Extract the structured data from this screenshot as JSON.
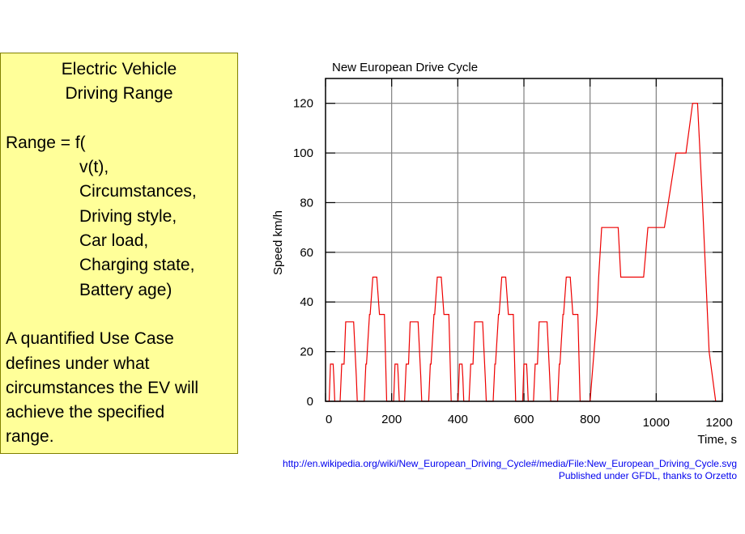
{
  "textbox": {
    "title_lines": [
      "Electric Vehicle",
      "Driving Range"
    ],
    "formula_head": "Range = f(",
    "formula_args": [
      "v(t),",
      "Circumstances,",
      "Driving style,",
      "Car load,",
      "Charging state,",
      "Battery age)"
    ],
    "paragraph_lines": [
      "A quantified Use Case",
      "defines under what",
      "circumstances the EV will",
      "achieve the specified",
      "range."
    ]
  },
  "credits": {
    "url": "http://en.wikipedia.org/wiki/New_European_Driving_Cycle#/media/File:New_European_Driving_Cycle.svg",
    "attribution": "Published under GFDL, thanks to Orzetto"
  },
  "colors": {
    "box_fill": "#ffff99",
    "box_border": "#808000",
    "line": "#ee0000",
    "grid": "#808080",
    "link": "#0000ee"
  },
  "chart_data": {
    "type": "line",
    "title": "New European Drive Cycle",
    "xlabel": "Time, s",
    "ylabel": "Speed km/h",
    "xlim": [
      0,
      1200
    ],
    "ylim": [
      0,
      130
    ],
    "xticks": [
      0,
      200,
      400,
      600,
      800,
      1000,
      1200
    ],
    "yticks": [
      0,
      20,
      40,
      60,
      80,
      100,
      120
    ],
    "grid": true,
    "legend": null,
    "series": [
      {
        "name": "Speed",
        "urban_cycle_template": {
          "period_s": 195,
          "repeats": 4,
          "t": [
            0,
            11,
            15,
            23,
            25,
            28,
            44,
            49,
            54,
            56,
            61,
            85,
            93,
            96,
            117,
            122,
            124,
            133,
            135,
            143,
            155,
            163,
            176,
            178,
            185,
            188,
            195
          ],
          "v": [
            0,
            0,
            15,
            15,
            10,
            0,
            0,
            15,
            15,
            15,
            32,
            32,
            10,
            0,
            0,
            15,
            15,
            35,
            35,
            50,
            50,
            35,
            35,
            35,
            0,
            0,
            0
          ]
        },
        "extra_urban": {
          "t": [
            780,
            800,
            821,
            826,
            835,
            885,
            893,
            962,
            975,
            1025,
            1060,
            1090,
            1110,
            1125,
            1140,
            1150,
            1160,
            1180
          ],
          "v": [
            0,
            0,
            35,
            50,
            70,
            70,
            50,
            50,
            70,
            70,
            100,
            100,
            120,
            120,
            80,
            50,
            20,
            0
          ]
        }
      }
    ]
  }
}
